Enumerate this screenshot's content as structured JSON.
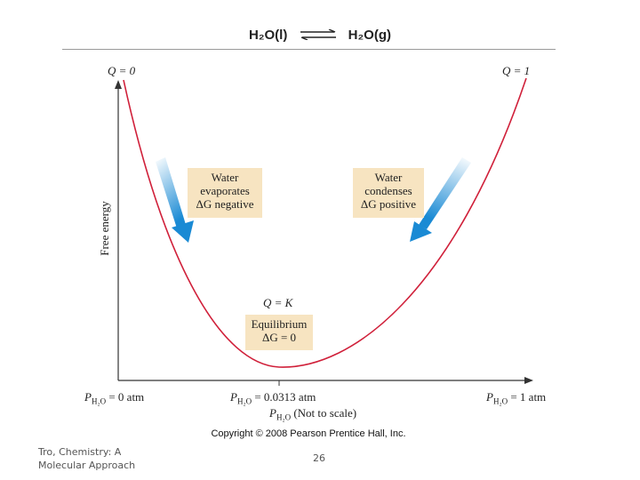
{
  "equation": {
    "left": "H₂O(l)",
    "right": "H₂O(g)"
  },
  "q_left": "Q = 0",
  "q_right": "Q = 1",
  "q_k": "Q = K",
  "y_axis_label": "Free energy",
  "box_left": {
    "line1": "Water",
    "line2": "evaporates",
    "line3": "ΔG negative"
  },
  "box_right": {
    "line1": "Water",
    "line2": "condenses",
    "line3": "ΔG positive"
  },
  "box_center": {
    "line1": "Equilibrium",
    "line2": "ΔG = 0"
  },
  "x_labels": {
    "left": "P",
    "left_sub": "H₂O",
    "left_rest": " = 0 atm",
    "mid": "P",
    "mid_sub": "H₂O",
    "mid_rest": " = 0.0313 atm",
    "right": "P",
    "right_sub": "H₂O",
    "right_rest": " = 1 atm"
  },
  "x_axis_label": {
    "p": "P",
    "sub": "H₂O",
    "rest": " (Not to scale)"
  },
  "copyright": "Copyright © 2008 Pearson Prentice Hall, Inc.",
  "footer_text": "Tro, Chemistry: A Molecular Approach",
  "page_number": "26",
  "colors": {
    "curve": "#d0203a",
    "arrow": "#1a8ad4",
    "box": "#f7e4c1"
  }
}
